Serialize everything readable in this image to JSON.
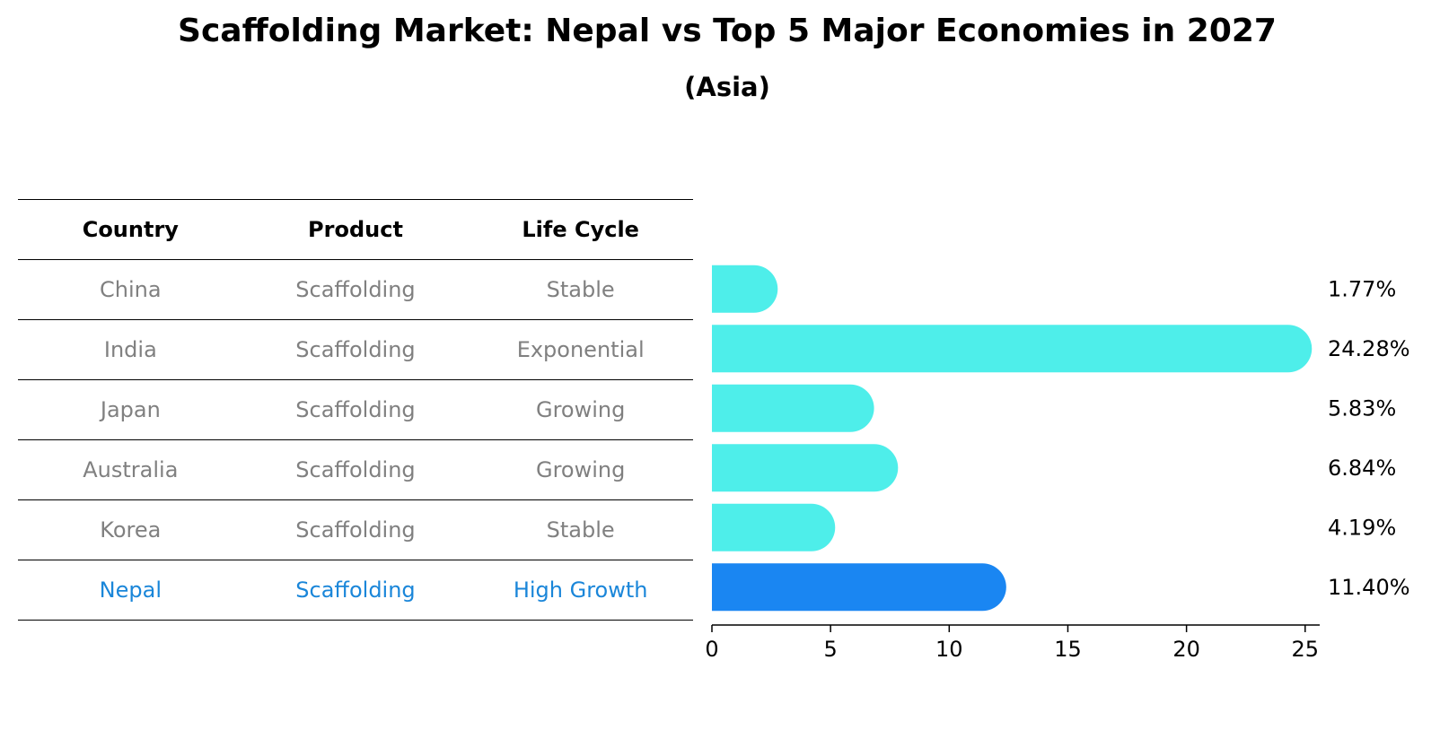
{
  "title": "Scaffolding Market: Nepal vs Top 5 Major Economies in 2027",
  "subtitle": "(Asia)",
  "table": {
    "headers": [
      "Country",
      "Product",
      "Life Cycle"
    ],
    "rows": [
      {
        "country": "China",
        "product": "Scaffolding",
        "life_cycle": "Stable"
      },
      {
        "country": "India",
        "product": "Scaffolding",
        "life_cycle": "Exponential"
      },
      {
        "country": "Japan",
        "product": "Scaffolding",
        "life_cycle": "Growing"
      },
      {
        "country": "Australia",
        "product": "Scaffolding",
        "life_cycle": "Growing"
      },
      {
        "country": "Korea",
        "product": "Scaffolding",
        "life_cycle": "Stable"
      },
      {
        "country": "Nepal",
        "product": "Scaffolding",
        "life_cycle": "High Growth"
      }
    ]
  },
  "colors": {
    "bar": "#4eeeea",
    "highlight": "#1a86f2",
    "muted_text": "#808080",
    "highlight_text": "#1a86d9"
  },
  "chart_data": {
    "type": "bar",
    "orientation": "horizontal",
    "categories": [
      "China",
      "India",
      "Japan",
      "Australia",
      "Korea",
      "Nepal"
    ],
    "values": [
      1.77,
      24.28,
      5.83,
      6.84,
      4.19,
      11.4
    ],
    "value_labels": [
      "1.77%",
      "24.28%",
      "5.83%",
      "6.84%",
      "4.19%",
      "11.40%"
    ],
    "highlight": "Nepal",
    "xlim": [
      0,
      25.5
    ],
    "xticks": [
      0,
      5,
      10,
      15,
      20,
      25
    ],
    "xtick_labels": [
      "0",
      "5",
      "10",
      "15",
      "20",
      "25"
    ],
    "title": "Scaffolding Market: Nepal vs Top 5 Major Economies in 2027",
    "subtitle": "(Asia)",
    "xlabel": "",
    "ylabel": ""
  }
}
